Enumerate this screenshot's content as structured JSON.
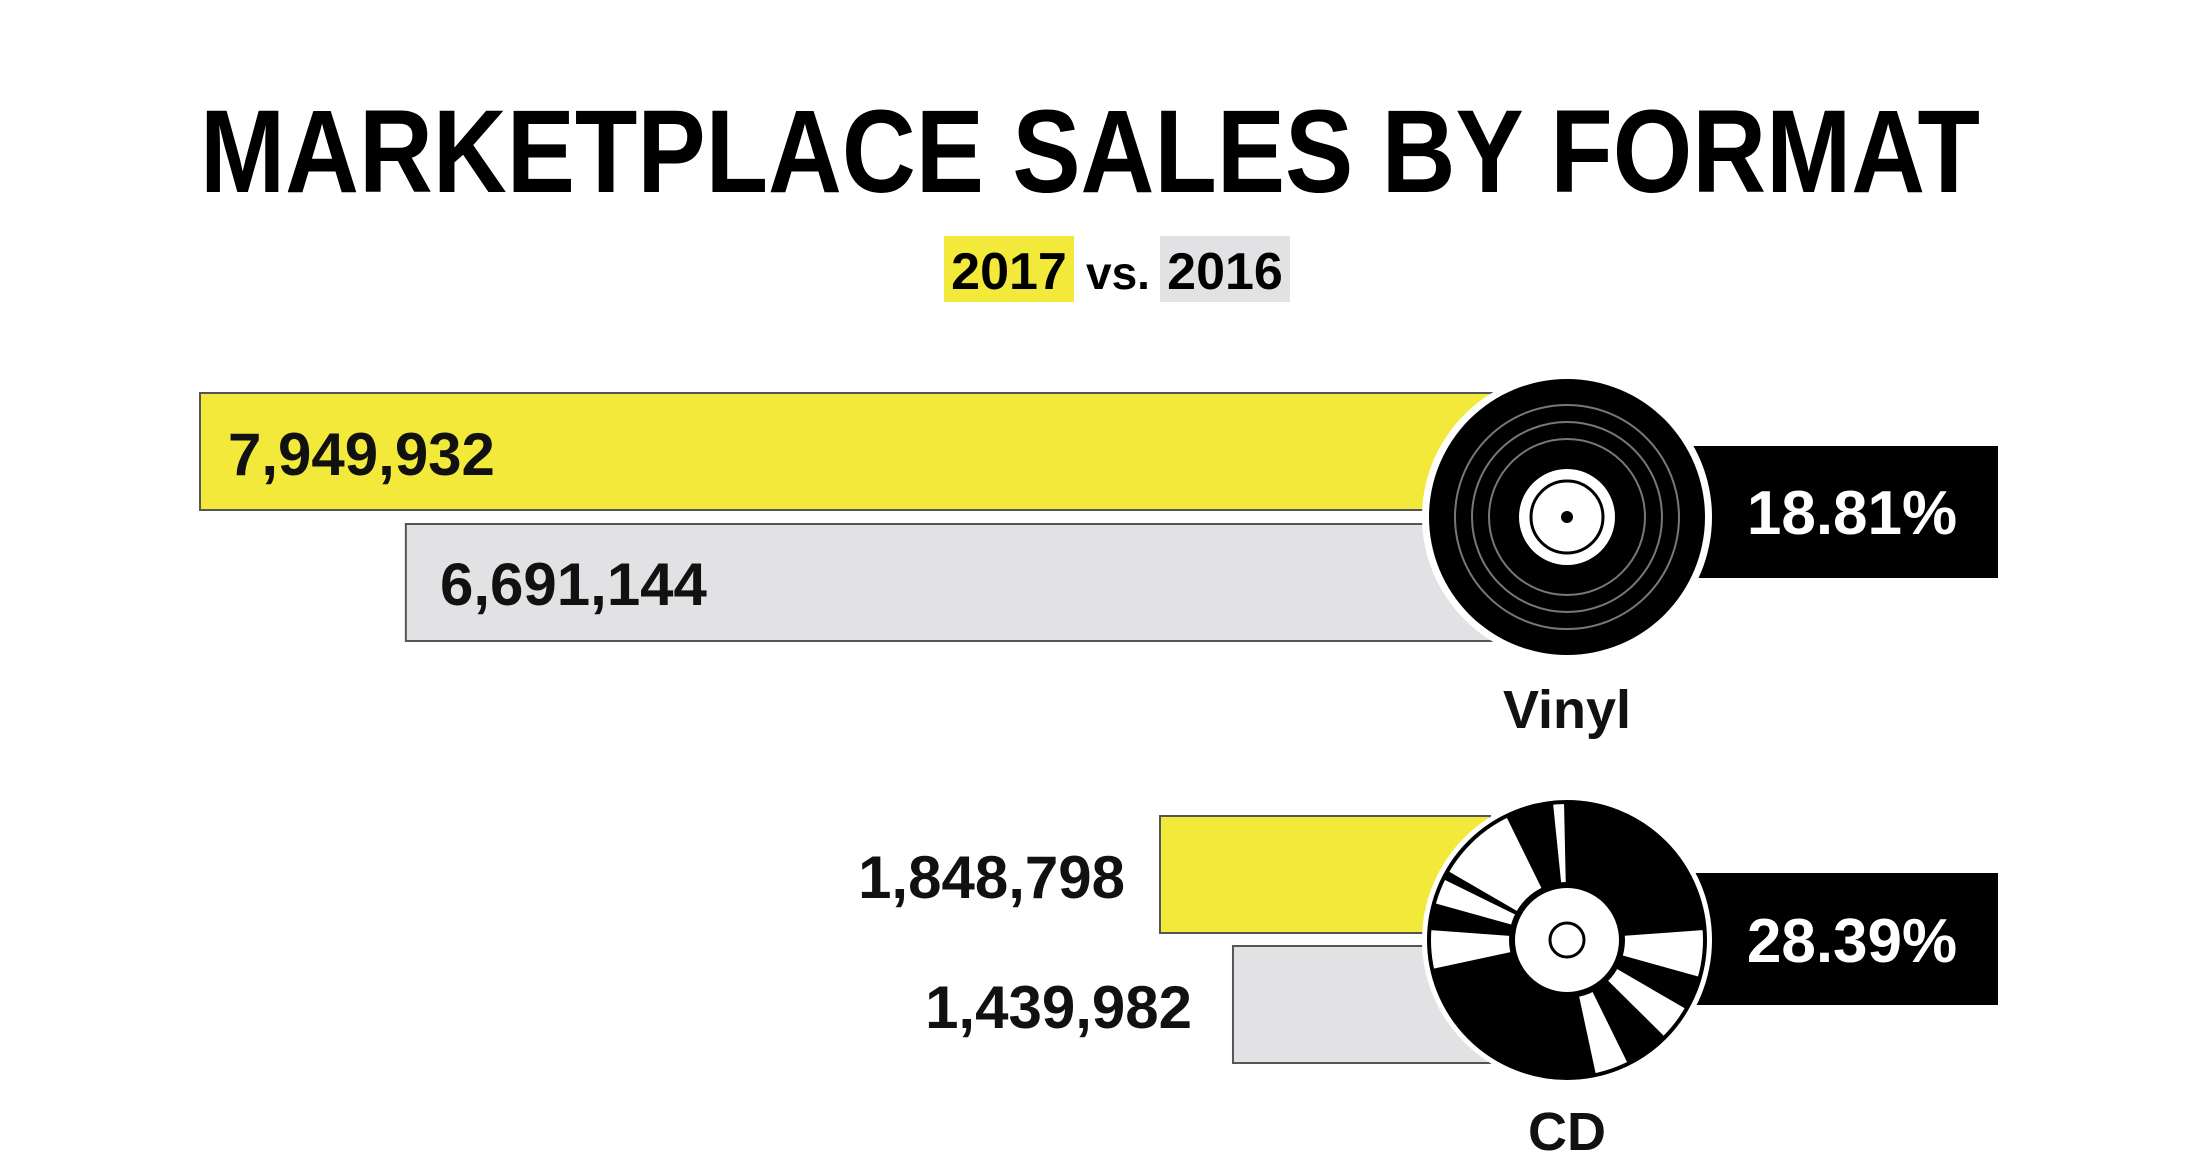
{
  "chart_data": {
    "type": "bar",
    "orientation": "horizontal",
    "title": "MARKETPLACE SALES BY FORMAT",
    "subtitle": {
      "year_a": "2017",
      "separator": "vs.",
      "year_b": "2016"
    },
    "categories": [
      "Vinyl",
      "CD"
    ],
    "series": [
      {
        "name": "2017",
        "values": [
          7949932,
          1848798
        ]
      },
      {
        "name": "2016",
        "values": [
          6691144,
          1439982
        ]
      }
    ],
    "value_labels": {
      "2017": [
        "7,949,932",
        "1,848,798"
      ],
      "2016": [
        "6,691,144",
        "1,439,982"
      ]
    },
    "growth_labels": [
      "18.81%",
      "28.39%"
    ],
    "legend": "inline-subtitle",
    "grid": false
  },
  "colors": {
    "series_2017": "#f2e93a",
    "series_2016": "#e2e2e4",
    "badge": "#000000",
    "badge_text": "#ffffff",
    "bar_border": "#555555"
  },
  "icons": {
    "vinyl": "vinyl-record-icon",
    "cd": "compact-disc-icon"
  }
}
